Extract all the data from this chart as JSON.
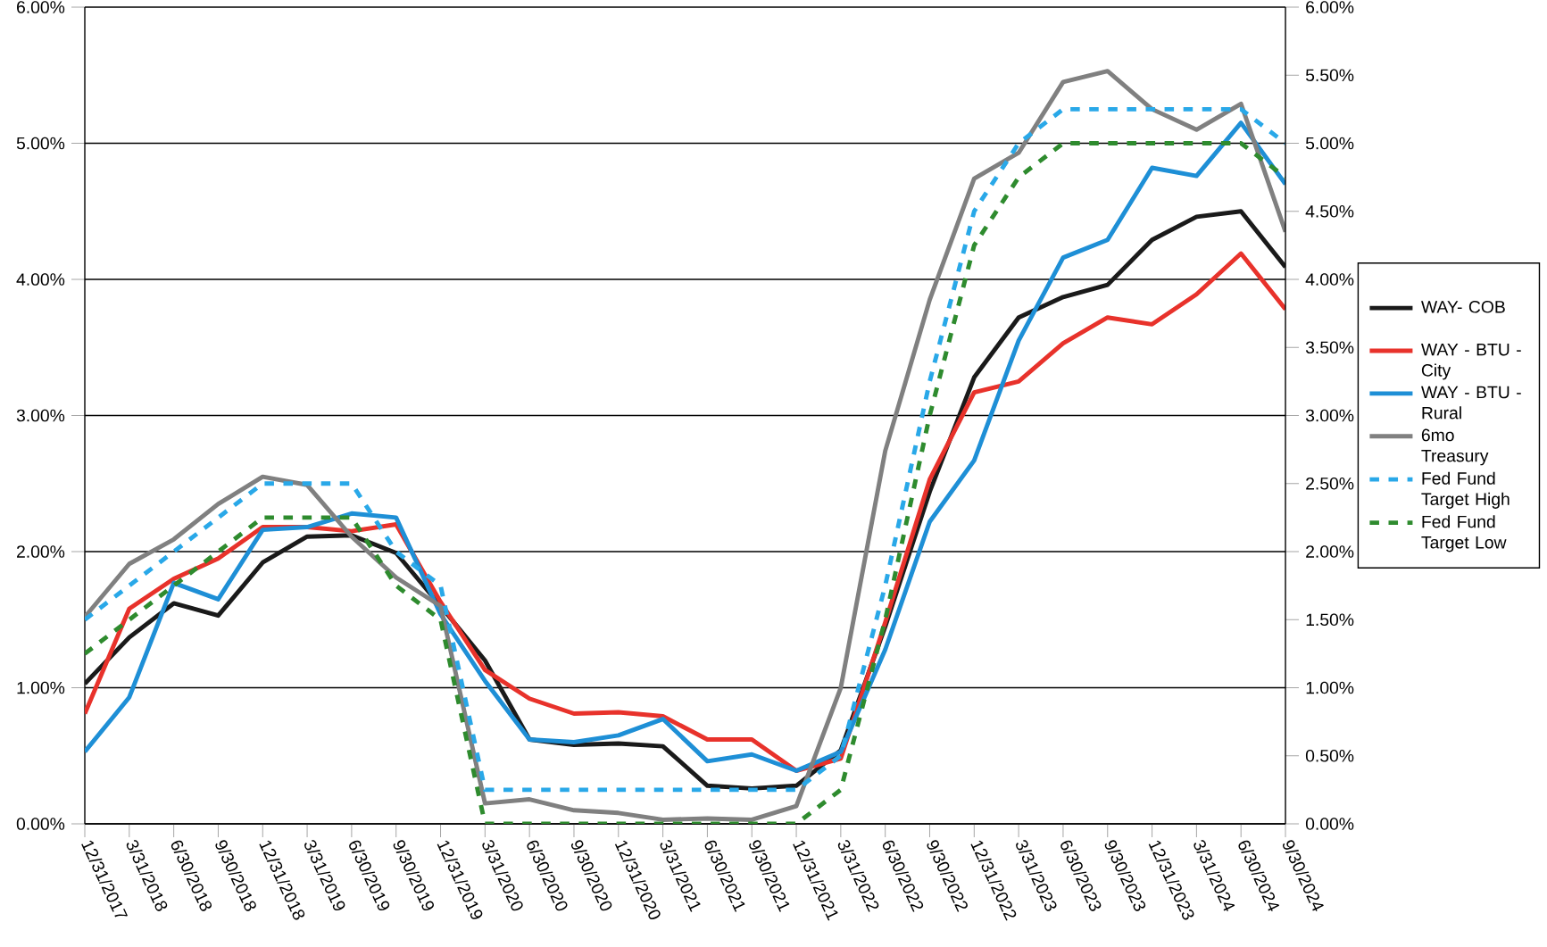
{
  "chart_data": {
    "type": "line",
    "categories": [
      "12/31/2017",
      "3/31/2018",
      "6/30/2018",
      "9/30/2018",
      "12/31/2018",
      "3/31/2019",
      "6/30/2019",
      "9/30/2019",
      "12/31/2019",
      "3/31/2020",
      "6/30/2020",
      "9/30/2020",
      "12/31/2020",
      "3/31/2021",
      "6/30/2021",
      "9/30/2021",
      "12/31/2021",
      "3/31/2022",
      "6/30/2022",
      "9/30/2022",
      "12/31/2022",
      "3/31/2023",
      "6/30/2023",
      "9/30/2023",
      "12/31/2023",
      "3/31/2024",
      "6/30/2024",
      "9/30/2024"
    ],
    "series": [
      {
        "name": "WAY- COB",
        "color": "#1a1a1a",
        "line_style": "solid",
        "values": [
          1.03,
          1.37,
          1.62,
          1.53,
          1.92,
          2.11,
          2.12,
          1.99,
          1.6,
          1.2,
          0.62,
          0.58,
          0.59,
          0.57,
          0.28,
          0.26,
          0.28,
          0.54,
          1.45,
          2.44,
          3.28,
          3.72,
          3.87,
          3.96,
          4.29,
          4.46,
          4.5,
          4.09
        ]
      },
      {
        "name": "WAY - BTU - City",
        "color": "#e8322b",
        "line_style": "solid",
        "values": [
          0.81,
          1.58,
          1.8,
          1.95,
          2.18,
          2.18,
          2.15,
          2.2,
          1.63,
          1.13,
          0.92,
          0.81,
          0.82,
          0.79,
          0.62,
          0.62,
          0.39,
          0.48,
          1.48,
          2.53,
          3.17,
          3.25,
          3.53,
          3.72,
          3.67,
          3.89,
          4.19,
          3.78
        ]
      },
      {
        "name": "WAY - BTU - Rural",
        "color": "#1e8fd6",
        "line_style": "solid",
        "values": [
          0.53,
          0.93,
          1.77,
          1.65,
          2.16,
          2.18,
          2.28,
          2.25,
          1.54,
          1.05,
          0.62,
          0.6,
          0.65,
          0.77,
          0.46,
          0.51,
          0.39,
          0.53,
          1.28,
          2.22,
          2.67,
          3.55,
          4.16,
          4.29,
          4.82,
          4.76,
          5.15,
          4.7
        ]
      },
      {
        "name": "6mo Treasury",
        "color": "#808080",
        "line_style": "solid",
        "values": [
          1.52,
          1.91,
          2.09,
          2.35,
          2.55,
          2.49,
          2.11,
          1.81,
          1.6,
          0.15,
          0.18,
          0.1,
          0.08,
          0.03,
          0.04,
          0.03,
          0.13,
          1.0,
          2.74,
          3.85,
          4.74,
          4.93,
          5.45,
          5.53,
          5.25,
          5.1,
          5.29,
          4.35
        ]
      },
      {
        "name": "Fed Fund Target High",
        "color": "#29a8e8",
        "line_style": "dashed",
        "values": [
          1.5,
          1.75,
          2.0,
          2.25,
          2.5,
          2.5,
          2.5,
          2.0,
          1.75,
          0.25,
          0.25,
          0.25,
          0.25,
          0.25,
          0.25,
          0.25,
          0.25,
          0.5,
          1.75,
          3.25,
          4.5,
          5.0,
          5.25,
          5.25,
          5.25,
          5.25,
          5.25,
          5.0
        ]
      },
      {
        "name": "Fed Fund Target Low",
        "color": "#2e8b2e",
        "line_style": "dashed",
        "values": [
          1.25,
          1.5,
          1.75,
          2.0,
          2.25,
          2.25,
          2.25,
          1.75,
          1.5,
          0.0,
          0.0,
          0.0,
          0.0,
          0.0,
          0.0,
          0.0,
          0.0,
          0.25,
          1.5,
          3.0,
          4.25,
          4.75,
          5.0,
          5.0,
          5.0,
          5.0,
          5.0,
          4.75
        ]
      }
    ],
    "ylim": [
      0,
      6
    ],
    "yticks": [
      {
        "value": 0,
        "label": "0.00%"
      },
      {
        "value": 1,
        "label": "1.00%"
      },
      {
        "value": 2,
        "label": "2.00%"
      },
      {
        "value": 3,
        "label": "3.00%"
      },
      {
        "value": 4,
        "label": "4.00%"
      },
      {
        "value": 5,
        "label": "5.00%"
      },
      {
        "value": 6,
        "label": "6.00%"
      }
    ],
    "y2lim": [
      0,
      6
    ],
    "y2ticks": [
      {
        "value": 0,
        "label": "0.00%"
      },
      {
        "value": 0.5,
        "label": "0.50%"
      },
      {
        "value": 1,
        "label": "1.00%"
      },
      {
        "value": 1.5,
        "label": "1.50%"
      },
      {
        "value": 2,
        "label": "2.00%"
      },
      {
        "value": 2.5,
        "label": "2.50%"
      },
      {
        "value": 3,
        "label": "3.00%"
      },
      {
        "value": 3.5,
        "label": "3.50%"
      },
      {
        "value": 4,
        "label": "4.00%"
      },
      {
        "value": 4.5,
        "label": "4.50%"
      },
      {
        "value": 5,
        "label": "5.00%"
      },
      {
        "value": 5.5,
        "label": "5.50%"
      },
      {
        "value": 6,
        "label": "6.00%"
      }
    ],
    "grid": "y",
    "legend": "right",
    "marker": "none"
  }
}
